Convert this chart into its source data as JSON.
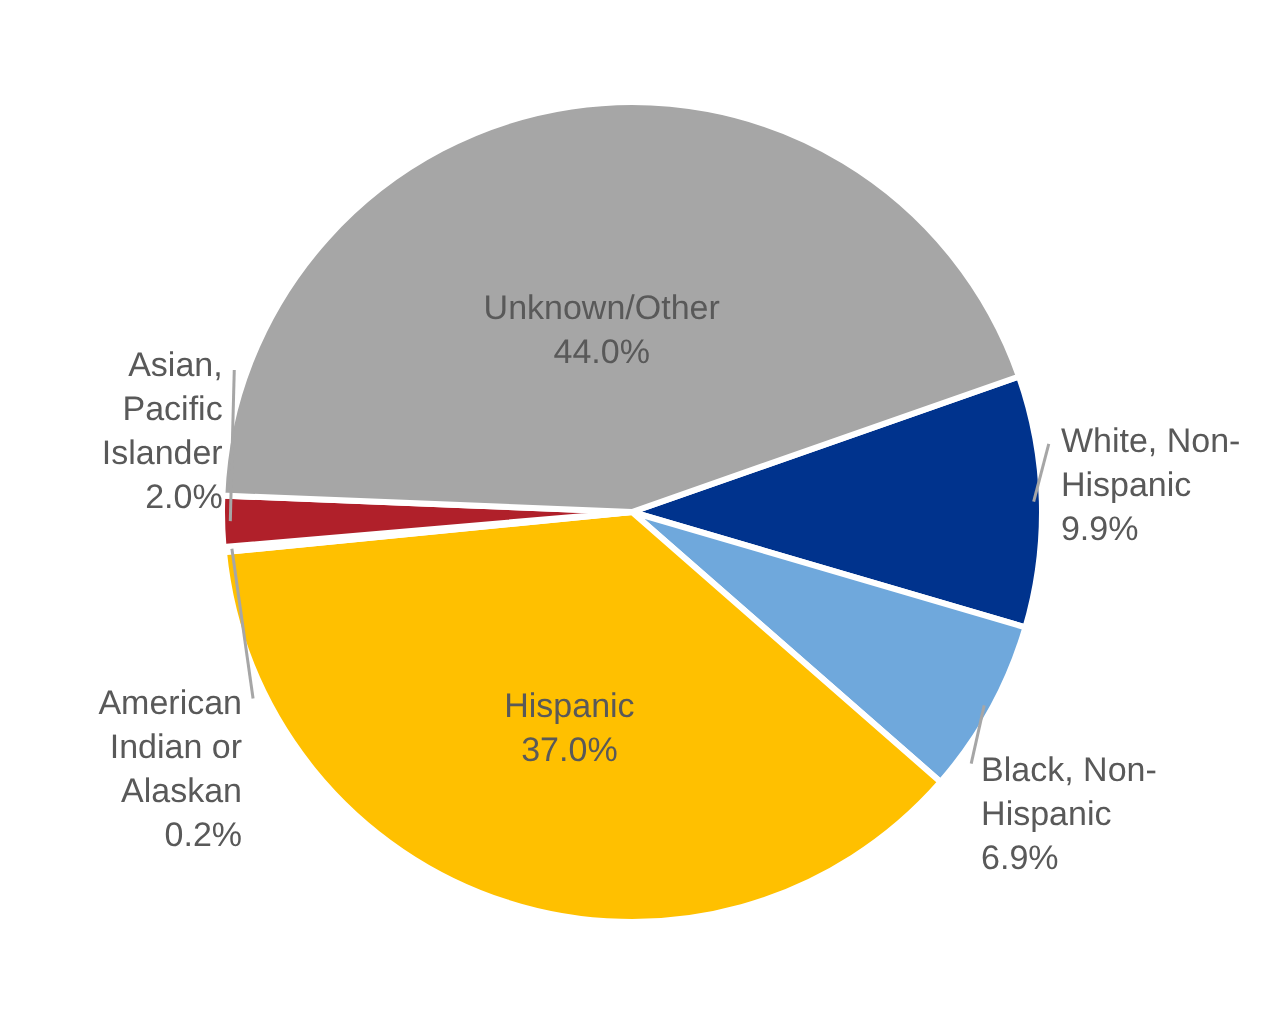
{
  "chart_data": {
    "type": "pie",
    "categories": [
      "White, Non-Hispanic",
      "Black, Non-Hispanic",
      "Hispanic",
      "American Indian or Alaskan",
      "Asian, Pacific Islander",
      "Unknown/Other"
    ],
    "values": [
      9.9,
      6.9,
      37.0,
      0.2,
      2.0,
      44.0
    ],
    "colors": [
      "#00338d",
      "#6fa8dc",
      "#ffc000",
      "#f2f2f2",
      "#b0202a",
      "#a6a6a6"
    ],
    "value_labels": [
      "9.9%",
      "6.9%",
      "37.0%",
      "0.2%",
      "2.0%",
      "44.0%"
    ]
  }
}
